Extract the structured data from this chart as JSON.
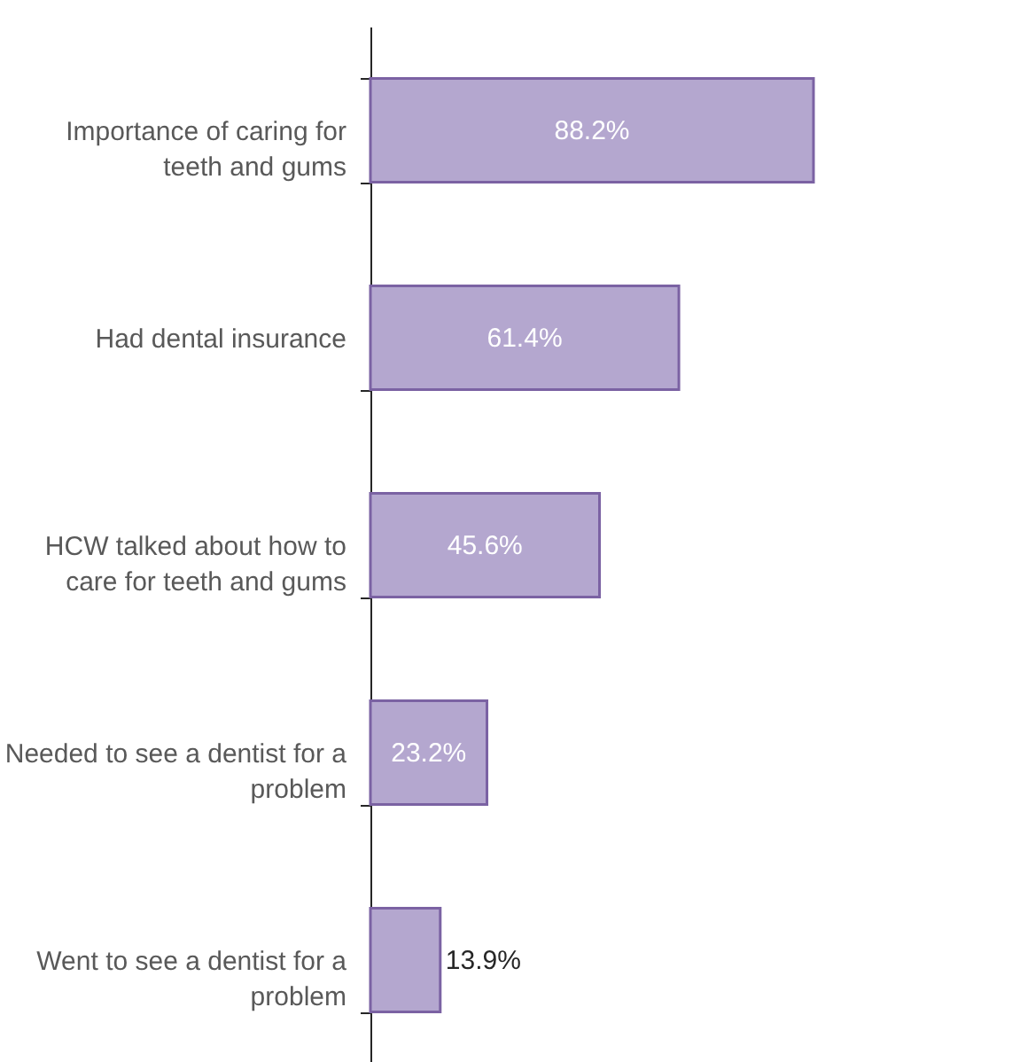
{
  "chart_data": {
    "type": "bar",
    "orientation": "horizontal",
    "categories": [
      "Importance of caring for teeth and gums",
      "Had dental insurance",
      "HCW talked about how to care for teeth and gums",
      "Needed to see a dentist for a problem",
      "Went to see a dentist for a problem"
    ],
    "values": [
      88.2,
      61.4,
      45.6,
      23.2,
      13.9
    ],
    "value_labels": [
      "88.2%",
      "61.4%",
      "45.6%",
      "23.2%",
      "13.9%"
    ],
    "color": "#b4a7cf",
    "grid": false
  }
}
